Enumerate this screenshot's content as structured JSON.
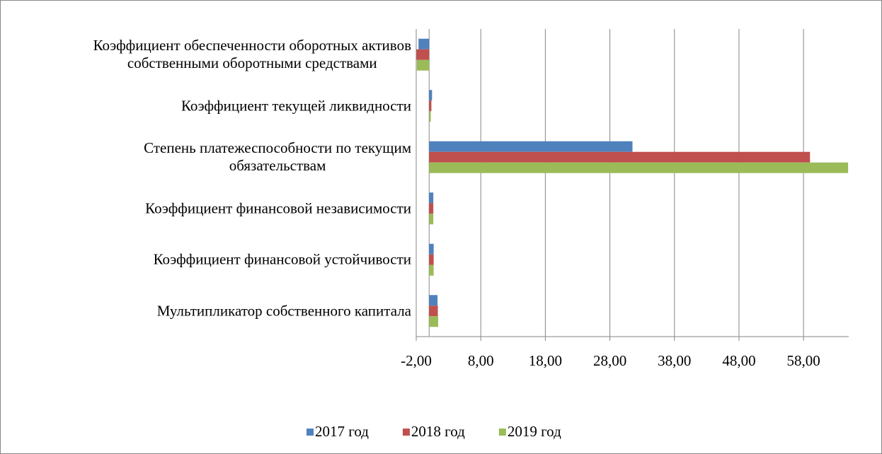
{
  "chart_data": {
    "type": "hbar",
    "categories": [
      "Коэффициент обеспеченности оборотных активов\nсобственными оборотными средствами",
      "Коэффициент текущей ликвидности",
      "Степень платежеспособности по текущим\nобязательствам",
      "Коэффициент финансовой независимости",
      "Коэффициент финансовой устойчивости",
      "Мультипликатор собственного капитала"
    ],
    "series": [
      {
        "name": "2017 год",
        "color": "#4f81bd",
        "values": [
          -1.65,
          0.45,
          31.5,
          0.65,
          0.7,
          1.3
        ]
      },
      {
        "name": "2018 год",
        "color": "#c0504d",
        "values": [
          -1.95,
          0.35,
          59.0,
          0.65,
          0.7,
          1.35
        ]
      },
      {
        "name": "2019 год",
        "color": "#9bbb59",
        "values": [
          -1.9,
          0.25,
          64.9,
          0.65,
          0.7,
          1.4
        ]
      }
    ],
    "xlim": [
      -2,
      65
    ],
    "xticks": [
      {
        "value": -2,
        "label": "-2,00"
      },
      {
        "value": 8,
        "label": "8,00"
      },
      {
        "value": 18,
        "label": "18,00"
      },
      {
        "value": 28,
        "label": "28,00"
      },
      {
        "value": 38,
        "label": "38,00"
      },
      {
        "value": 48,
        "label": "48,00"
      },
      {
        "value": 58,
        "label": "58,00"
      }
    ],
    "grid": true,
    "legend": "bottom"
  }
}
